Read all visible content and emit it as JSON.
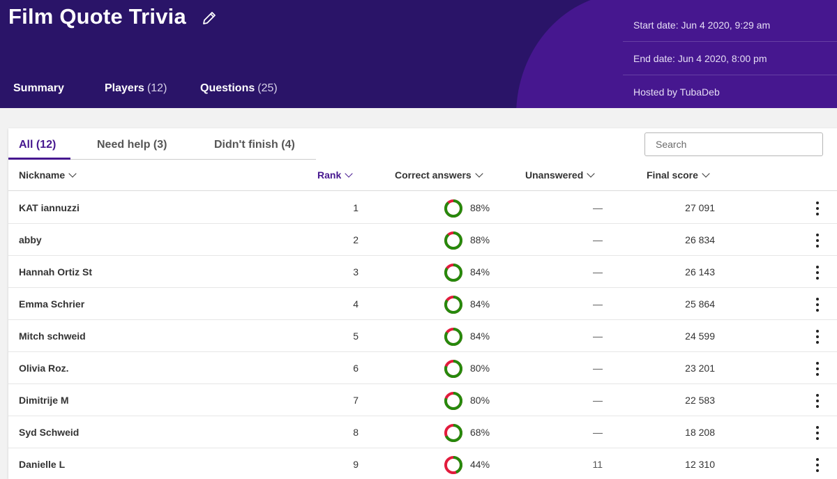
{
  "header": {
    "title": "Film Quote Trivia",
    "tabs": [
      {
        "label": "Summary",
        "count": ""
      },
      {
        "label": "Players",
        "count": "(12)"
      },
      {
        "label": "Questions",
        "count": "(25)"
      }
    ],
    "info": {
      "start": "Start date: Jun 4 2020, 9:29 am",
      "end": "End date: Jun 4 2020, 8:00 pm",
      "host": "Hosted by TubaDeb"
    }
  },
  "filters": {
    "all": "All (12)",
    "need_help": "Need help (3)",
    "didnt_finish": "Didn't finish (4)"
  },
  "search": {
    "placeholder": "Search",
    "value": ""
  },
  "columns": {
    "nickname": "Nickname",
    "rank": "Rank",
    "correct": "Correct answers",
    "unanswered": "Unanswered",
    "final_score": "Final score"
  },
  "colors": {
    "correct": "#26890c",
    "incorrect": "#e21b3c",
    "accent": "#46178f"
  },
  "players": [
    {
      "nickname": "KAT iannuzzi",
      "rank": "1",
      "correct_pct": 88,
      "correct": "88%",
      "unanswered": "—",
      "score": "27 091"
    },
    {
      "nickname": "abby",
      "rank": "2",
      "correct_pct": 88,
      "correct": "88%",
      "unanswered": "—",
      "score": "26 834"
    },
    {
      "nickname": "Hannah Ortiz St",
      "rank": "3",
      "correct_pct": 84,
      "correct": "84%",
      "unanswered": "—",
      "score": "26 143"
    },
    {
      "nickname": "Emma Schrier",
      "rank": "4",
      "correct_pct": 84,
      "correct": "84%",
      "unanswered": "—",
      "score": "25 864"
    },
    {
      "nickname": "Mitch schweid",
      "rank": "5",
      "correct_pct": 84,
      "correct": "84%",
      "unanswered": "—",
      "score": "24 599"
    },
    {
      "nickname": "Olivia Roz.",
      "rank": "6",
      "correct_pct": 80,
      "correct": "80%",
      "unanswered": "—",
      "score": "23 201"
    },
    {
      "nickname": "Dimitrije M",
      "rank": "7",
      "correct_pct": 80,
      "correct": "80%",
      "unanswered": "—",
      "score": "22 583"
    },
    {
      "nickname": "Syd Schweid",
      "rank": "8",
      "correct_pct": 68,
      "correct": "68%",
      "unanswered": "—",
      "score": "18 208"
    },
    {
      "nickname": "Danielle L",
      "rank": "9",
      "correct_pct": 44,
      "correct": "44%",
      "unanswered": "11",
      "score": "12 310"
    }
  ]
}
